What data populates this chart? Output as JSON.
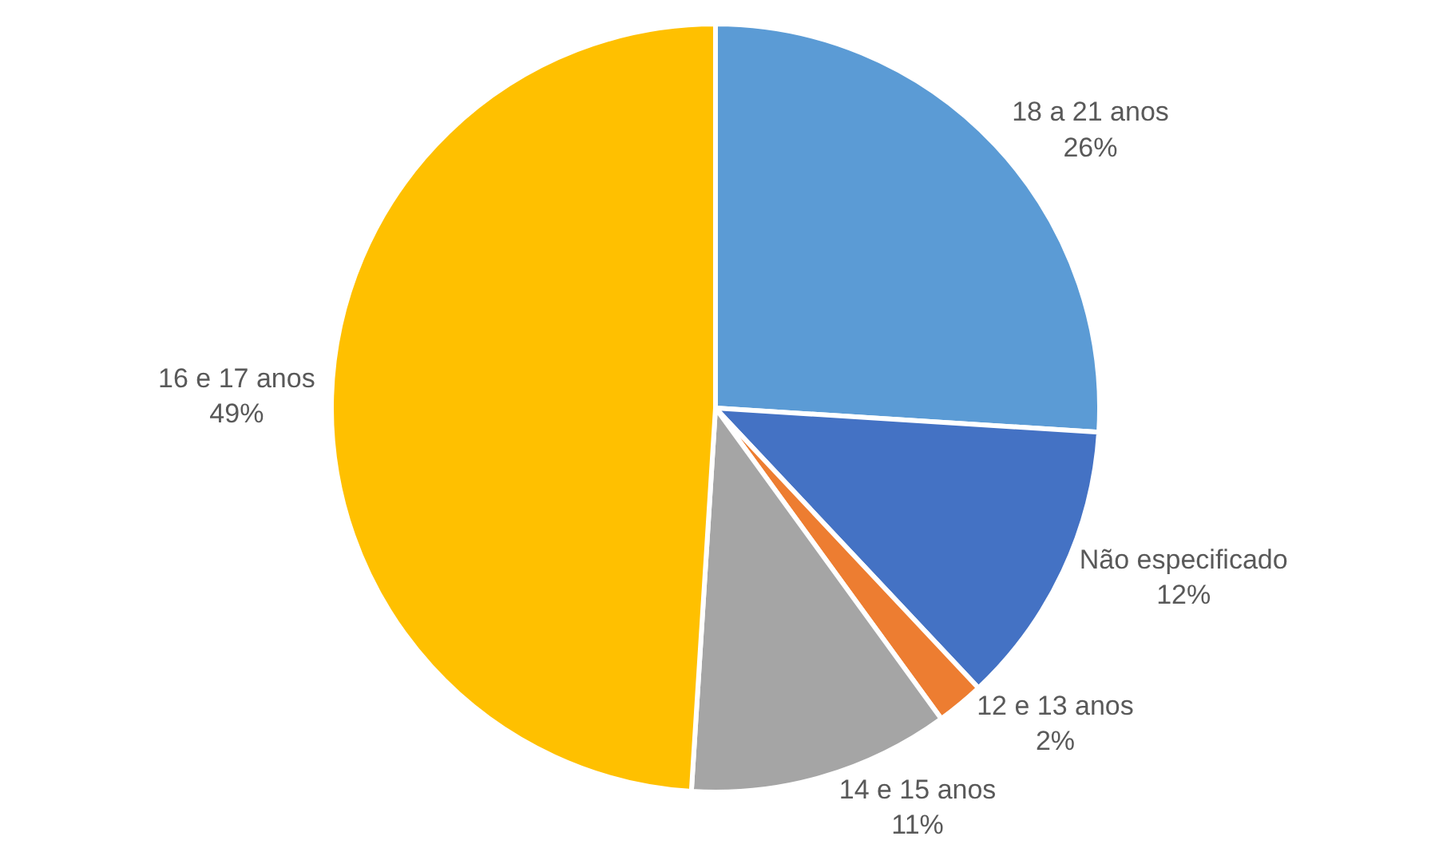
{
  "chart_data": {
    "type": "pie",
    "categories": [
      "18 a 21 anos",
      "Não especificado",
      "12 e 13 anos",
      "14 e 15 anos",
      "16 e 17 anos"
    ],
    "values": [
      26,
      12,
      2,
      11,
      49
    ],
    "value_labels": [
      "26%",
      "12%",
      "2%",
      "11%",
      "49%"
    ],
    "colors": [
      "#5b9bd5",
      "#4472c4",
      "#ed7d31",
      "#a5a5a5",
      "#ffc000"
    ],
    "legend": false
  }
}
